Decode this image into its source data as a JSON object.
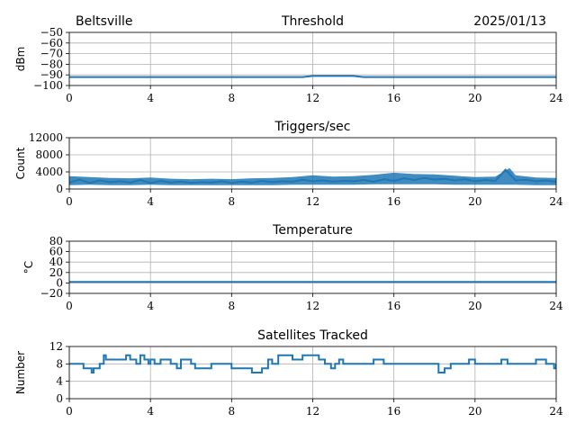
{
  "header": {
    "station": "Beltsville",
    "date": "2025/01/13"
  },
  "chart_data": [
    {
      "type": "line",
      "title": "Threshold",
      "ylabel": "dBm",
      "xlim": [
        0,
        24
      ],
      "ylim": [
        -100,
        -50
      ],
      "xticks": [
        "0",
        "4",
        "8",
        "12",
        "16",
        "20",
        "24"
      ],
      "yticks": [
        "−50",
        "−60",
        "−70",
        "−80",
        "−90",
        "−100"
      ],
      "grid": true,
      "color": "#1f77b4",
      "x": [
        0,
        2,
        4,
        6,
        8,
        10,
        11.5,
        12,
        12.5,
        13,
        14,
        14.5,
        15,
        16,
        17,
        18,
        19,
        20,
        21,
        22,
        23,
        24
      ],
      "y": [
        -92,
        -92,
        -92,
        -92,
        -92,
        -92,
        -92,
        -91,
        -91,
        -91,
        -91,
        -92,
        -92,
        -92,
        -92,
        -92,
        -92,
        -92,
        -92,
        -92,
        -92,
        -92
      ]
    },
    {
      "type": "line",
      "title": "Triggers/sec",
      "ylabel": "Count",
      "xlim": [
        0,
        24
      ],
      "ylim": [
        0,
        12000
      ],
      "xticks": [
        "0",
        "4",
        "8",
        "12",
        "16",
        "20",
        "24"
      ],
      "yticks": [
        "12000",
        "8000",
        "4000",
        "0"
      ],
      "grid": true,
      "color": "#1f77b4",
      "x": [
        0,
        0.5,
        1,
        1.5,
        2,
        2.5,
        3,
        3.5,
        4,
        4.5,
        5,
        5.5,
        6,
        6.5,
        7,
        7.5,
        8,
        8.5,
        9,
        9.5,
        10,
        10.5,
        11,
        11.5,
        12,
        12.5,
        13,
        13.5,
        14,
        14.5,
        15,
        15.5,
        16,
        16.5,
        17,
        17.5,
        18,
        18.5,
        19,
        19.5,
        20,
        20.5,
        21,
        21.5,
        22,
        22.5,
        23,
        23.5,
        24
      ],
      "y": [
        1500,
        2200,
        1400,
        2000,
        1600,
        1800,
        1500,
        2100,
        1400,
        1900,
        1500,
        1700,
        1400,
        1600,
        1500,
        1800,
        1400,
        1700,
        1500,
        1900,
        1600,
        1800,
        1700,
        2200,
        1800,
        2000,
        1700,
        1900,
        1800,
        2100,
        1700,
        2300,
        1900,
        2500,
        2100,
        2600,
        2200,
        2400,
        2000,
        2300,
        1800,
        2100,
        1900,
        4500,
        2000,
        2200,
        1800,
        2000,
        1700
      ],
      "envelope": {
        "x": [
          0,
          1,
          2,
          3,
          4,
          5,
          6,
          7,
          8,
          9,
          10,
          11,
          12,
          13,
          14,
          15,
          16,
          17,
          18,
          19,
          20,
          21,
          21.7,
          22,
          23,
          24
        ],
        "upper": [
          3000,
          2800,
          2600,
          2500,
          2700,
          2400,
          2300,
          2400,
          2300,
          2500,
          2600,
          2800,
          3200,
          2900,
          3000,
          3300,
          3800,
          3500,
          3400,
          3100,
          2800,
          2900,
          4900,
          3200,
          2700,
          2600
        ],
        "lower": [
          900,
          1000,
          900,
          900,
          1000,
          900,
          900,
          900,
          900,
          900,
          900,
          1000,
          1000,
          1000,
          1000,
          1100,
          1100,
          1100,
          1100,
          1000,
          1000,
          1000,
          1000,
          1000,
          900,
          900
        ]
      }
    },
    {
      "type": "line",
      "title": "Temperature",
      "ylabel": "°C",
      "xlim": [
        0,
        24
      ],
      "ylim": [
        -20,
        80
      ],
      "xticks": [
        "0",
        "4",
        "8",
        "12",
        "16",
        "20",
        "24"
      ],
      "yticks": [
        "80",
        "60",
        "40",
        "20",
        "0",
        "−20"
      ],
      "grid": true,
      "color": "#1f77b4",
      "x": [
        0,
        4,
        8,
        12,
        16,
        20,
        24
      ],
      "y": [
        2,
        2,
        2,
        2,
        2,
        2,
        2
      ]
    },
    {
      "type": "line",
      "title": "Satellites Tracked",
      "ylabel": "Number",
      "xlim": [
        0,
        24
      ],
      "ylim": [
        0,
        12
      ],
      "xticks": [
        "0",
        "4",
        "8",
        "12",
        "16",
        "20",
        "24"
      ],
      "yticks": [
        "12",
        "8",
        "4",
        "0"
      ],
      "grid": true,
      "color": "#1f77b4",
      "x": [
        0,
        0.5,
        0.7,
        1.0,
        1.1,
        1.2,
        1.5,
        1.7,
        1.8,
        2.0,
        2.5,
        2.8,
        3.0,
        3.3,
        3.5,
        3.7,
        3.9,
        4.0,
        4.2,
        4.5,
        5.0,
        5.3,
        5.5,
        6.0,
        6.2,
        6.5,
        6.8,
        7.0,
        7.5,
        7.8,
        8.0,
        8.5,
        9.0,
        9.5,
        9.8,
        10.0,
        10.3,
        10.5,
        11.0,
        11.5,
        12.0,
        12.3,
        12.6,
        12.9,
        13.1,
        13.3,
        13.5,
        14.0,
        14.5,
        15.0,
        15.5,
        16.0,
        16.5,
        17.0,
        17.5,
        18.0,
        18.2,
        18.5,
        18.8,
        19.0,
        19.5,
        19.7,
        20.0,
        20.5,
        21.0,
        21.3,
        21.6,
        22.0,
        22.5,
        23.0,
        23.5,
        23.9,
        24.0
      ],
      "y": [
        8,
        8,
        7,
        7,
        6,
        7,
        8,
        10,
        9,
        9,
        9,
        10,
        9,
        8,
        10,
        9,
        8,
        9,
        8,
        9,
        8,
        7,
        9,
        8,
        7,
        7,
        7,
        8,
        8,
        8,
        7,
        7,
        6,
        7,
        9,
        8,
        10,
        10,
        9,
        10,
        10,
        9,
        8,
        7,
        8,
        9,
        8,
        8,
        8,
        9,
        8,
        8,
        8,
        8,
        8,
        8,
        6,
        7,
        8,
        8,
        8,
        9,
        8,
        8,
        8,
        9,
        8,
        8,
        8,
        9,
        8,
        7,
        8
      ]
    }
  ]
}
